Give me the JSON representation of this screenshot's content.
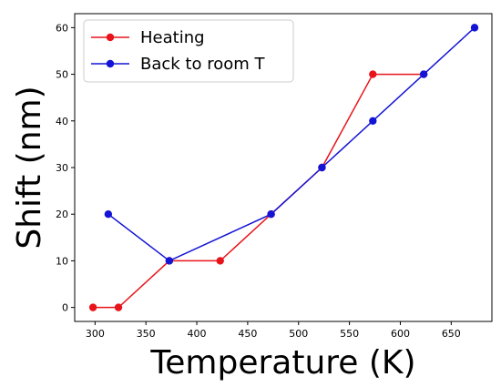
{
  "chart_data": {
    "type": "line",
    "xlabel": "Temperature (K)",
    "ylabel": "Shift (nm)",
    "xlim": [
      280,
      690
    ],
    "ylim": [
      -3,
      63
    ],
    "xticks": [
      300,
      350,
      400,
      450,
      500,
      550,
      600,
      650
    ],
    "yticks": [
      0,
      10,
      20,
      30,
      40,
      50,
      60
    ],
    "legend_position": "top-left",
    "grid": false,
    "series": [
      {
        "name": "Heating",
        "color": "#e8141b",
        "x": [
          298,
          323,
          373,
          423,
          473,
          523,
          573,
          623
        ],
        "y": [
          0,
          0,
          10,
          10,
          20,
          30,
          50,
          50
        ]
      },
      {
        "name": "Back to room T",
        "color": "#1414d6",
        "x": [
          313,
          373,
          473,
          523,
          573,
          623,
          673
        ],
        "y": [
          20,
          10,
          20,
          30,
          40,
          50,
          60
        ]
      }
    ]
  }
}
